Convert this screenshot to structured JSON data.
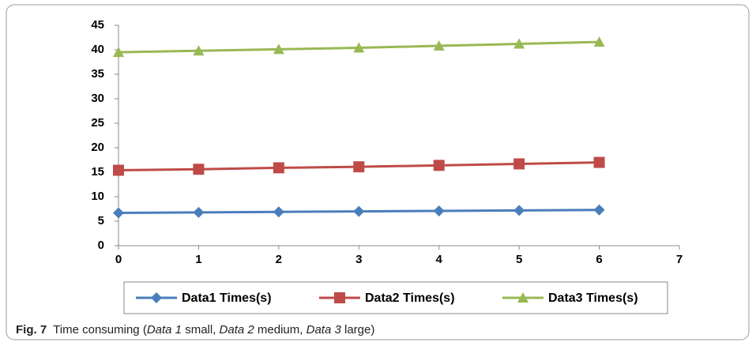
{
  "chart_data": {
    "type": "line",
    "x": [
      0,
      1,
      2,
      3,
      4,
      5,
      6
    ],
    "series": [
      {
        "name": "Data1 Times(s)",
        "color": "#4a7ebb",
        "marker": "diamond",
        "values": [
          6.7,
          6.8,
          6.9,
          7.0,
          7.1,
          7.2,
          7.3
        ]
      },
      {
        "name": "Data2 Times(s)",
        "color": "#be4b48",
        "marker": "square",
        "values": [
          15.4,
          15.6,
          15.9,
          16.1,
          16.4,
          16.7,
          17.0
        ]
      },
      {
        "name": "Data3 Times(s)",
        "color": "#98b954",
        "marker": "triangle",
        "values": [
          39.5,
          39.8,
          40.1,
          40.4,
          40.8,
          41.2,
          41.6
        ]
      }
    ],
    "xlim": [
      0,
      7
    ],
    "xticks": [
      0,
      1,
      2,
      3,
      4,
      5,
      6,
      7
    ],
    "ylim": [
      0,
      45
    ],
    "yticks": [
      0,
      5,
      10,
      15,
      20,
      25,
      30,
      35,
      40,
      45
    ],
    "grid": false,
    "legend": "bottom",
    "caption": {
      "label": "Fig. 7",
      "segments": [
        {
          "text": "Time consuming ("
        },
        {
          "text": "Data 1",
          "italic": true
        },
        {
          "text": " small, "
        },
        {
          "text": "Data 2",
          "italic": true
        },
        {
          "text": " medium, "
        },
        {
          "text": "Data 3",
          "italic": true
        },
        {
          "text": " large)"
        }
      ]
    }
  }
}
